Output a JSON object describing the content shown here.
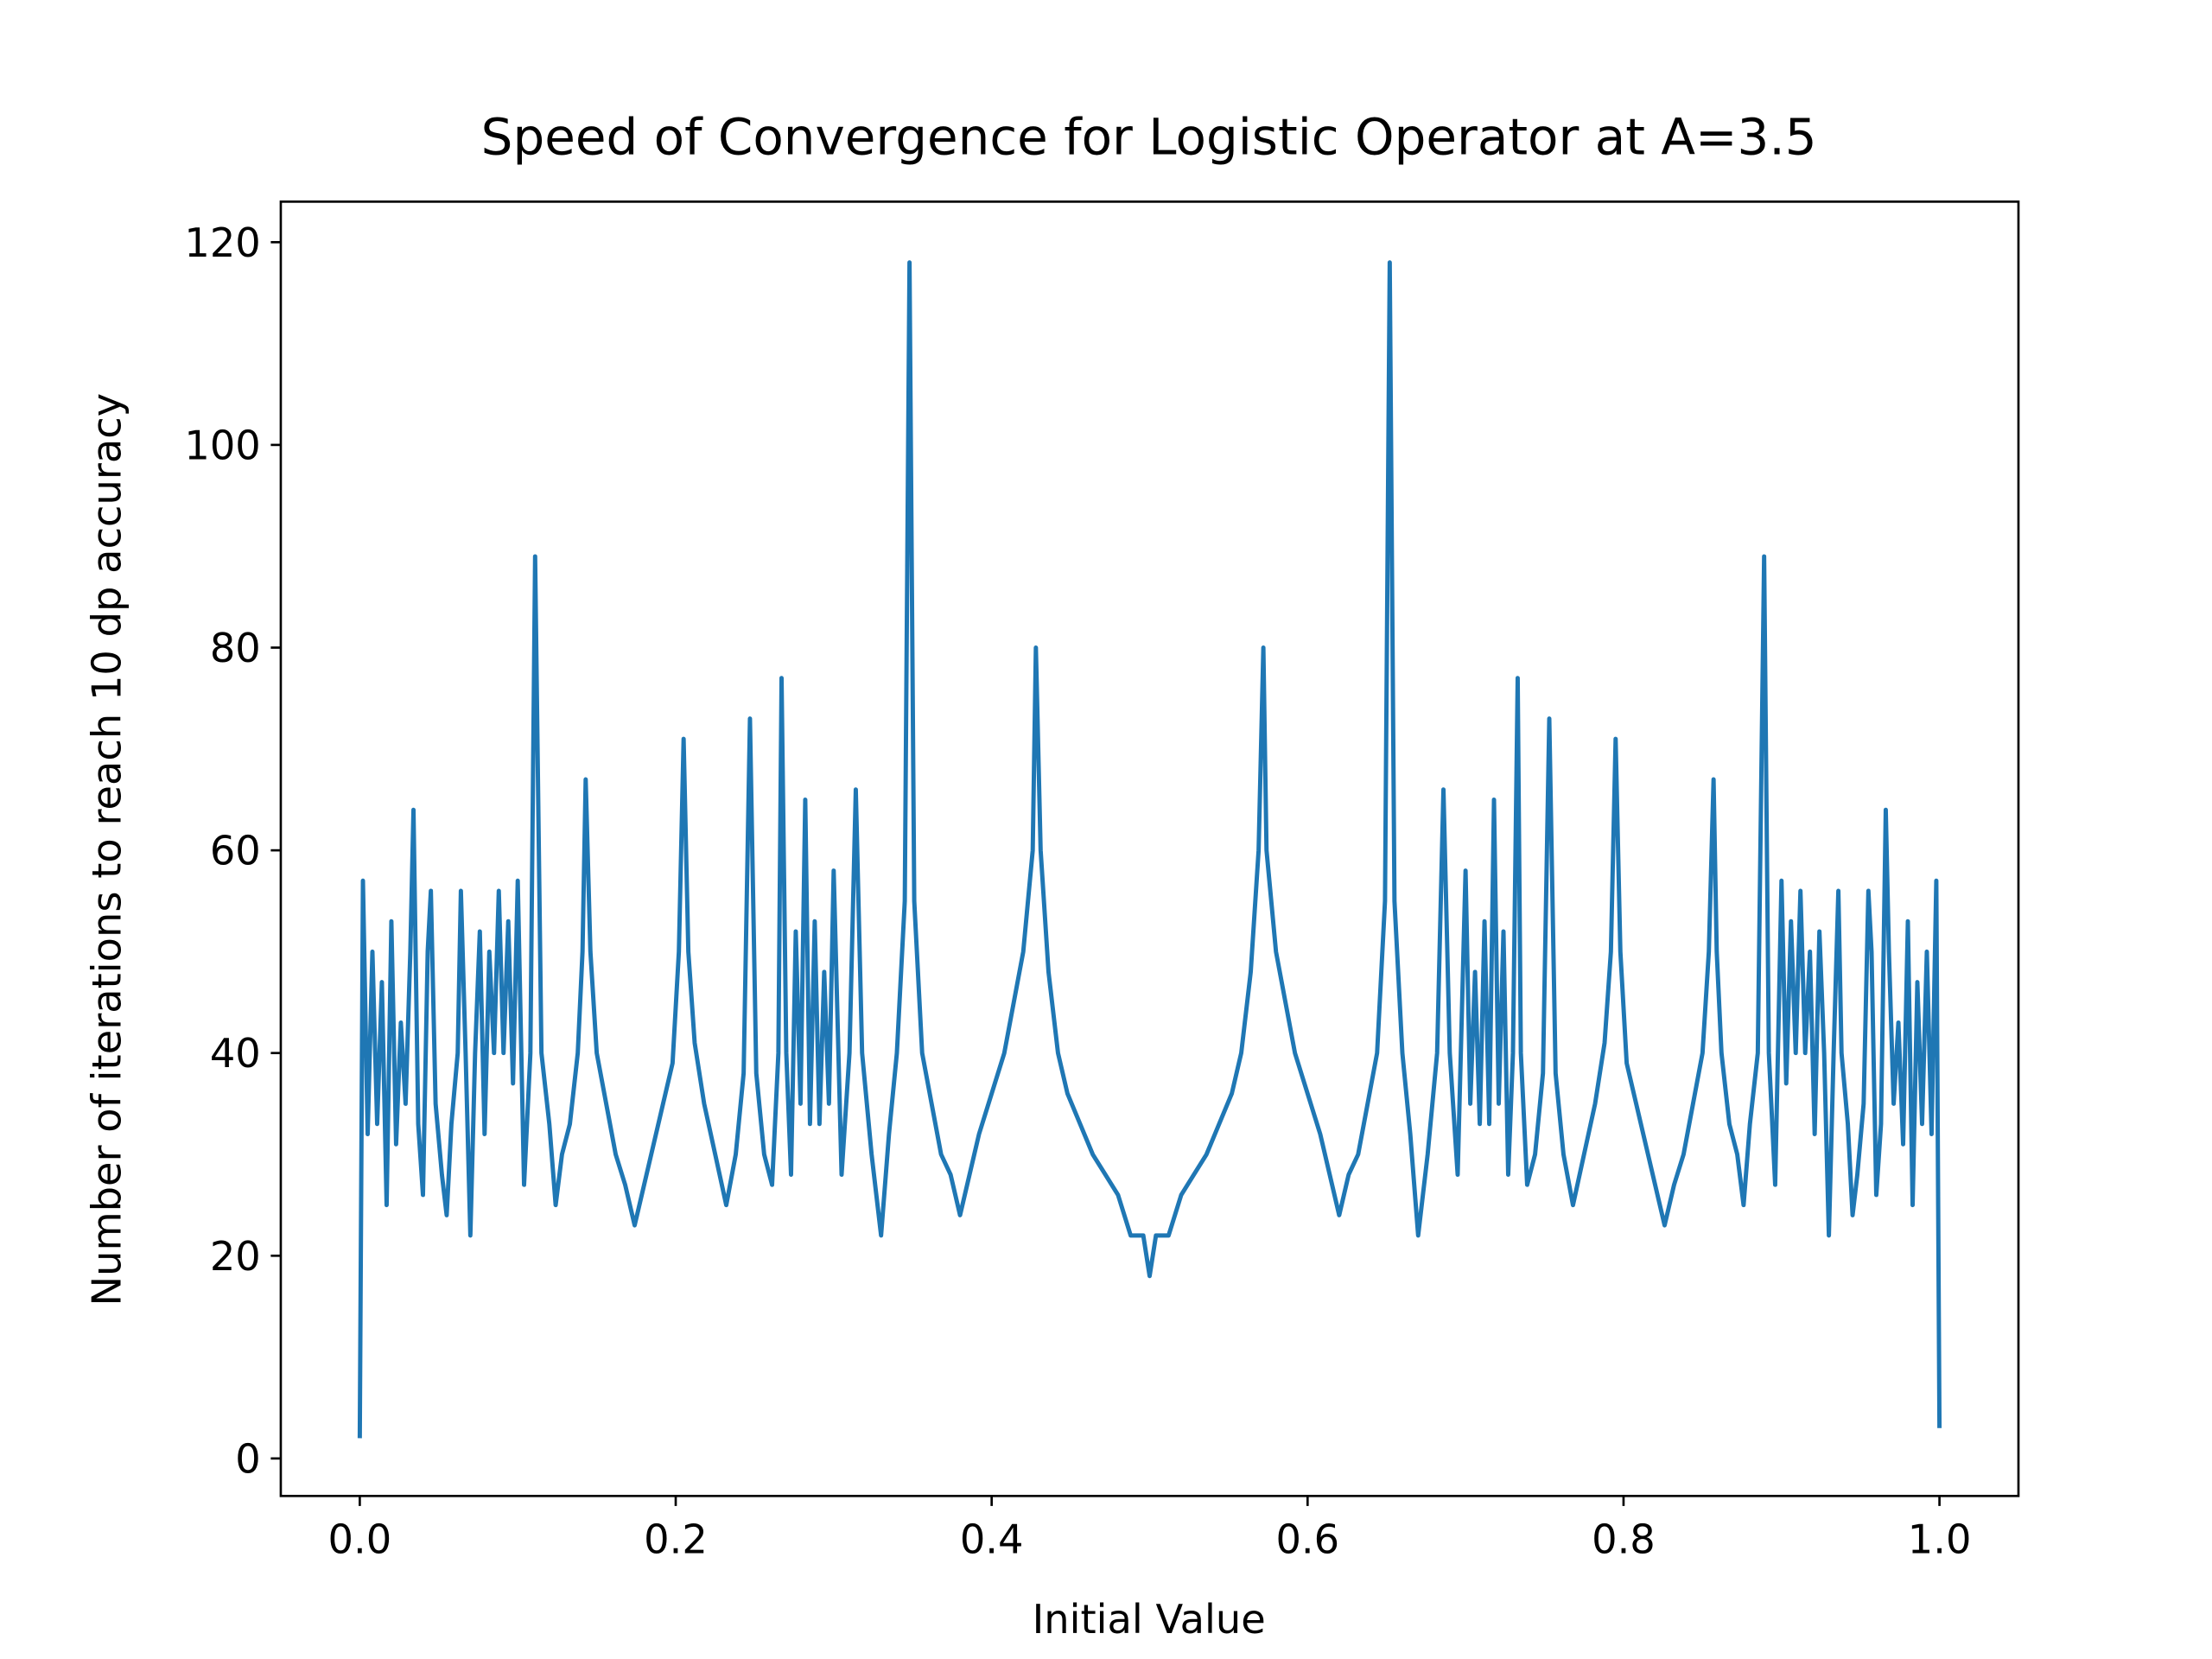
{
  "chart_data": {
    "type": "line",
    "title": "Speed of Convergence for Logistic Operator at A=3.5",
    "x_label": "Initial Value",
    "y_label": "Number of iterations to reach 10 dp accuracy",
    "xlim": [
      -0.05,
      1.05
    ],
    "ylim": [
      -3.7,
      124
    ],
    "xticks": [
      {
        "value": 0,
        "label": "0.0"
      },
      0.2,
      0.4,
      0.6,
      0.8,
      {
        "value": 1,
        "label": "1.0"
      }
    ],
    "yticks": [
      0,
      20,
      40,
      60,
      80,
      100,
      120
    ],
    "x": [
      0,
      0.002,
      0.005,
      0.008,
      0.011,
      0.014,
      0.017,
      0.02,
      0.023,
      0.026,
      0.029,
      0.032,
      0.034,
      0.037,
      0.04,
      0.043,
      0.045,
      0.048,
      0.052,
      0.055,
      0.058,
      0.062,
      0.064,
      0.067,
      0.07,
      0.073,
      0.076,
      0.079,
      0.082,
      0.085,
      0.088,
      0.091,
      0.094,
      0.097,
      0.1,
      0.104,
      0.108,
      0.111,
      0.115,
      0.12,
      0.124,
      0.128,
      0.133,
      0.138,
      0.141,
      0.143,
      0.146,
      0.15,
      0.156,
      0.162,
      0.168,
      0.174,
      0.18,
      0.186,
      0.192,
      0.198,
      0.202,
      0.205,
      0.208,
      0.212,
      0.218,
      0.225,
      0.232,
      0.238,
      0.243,
      0.247,
      0.251,
      0.256,
      0.261,
      0.265,
      0.267,
      0.27,
      0.273,
      0.276,
      0.279,
      0.282,
      0.285,
      0.288,
      0.291,
      0.294,
      0.297,
      0.3,
      0.305,
      0.31,
      0.314,
      0.318,
      0.324,
      0.33,
      0.335,
      0.34,
      0.345,
      0.348,
      0.351,
      0.356,
      0.362,
      0.368,
      0.374,
      0.38,
      0.386,
      0.392,
      0.4,
      0.408,
      0.414,
      0.42,
      0.426,
      0.428,
      0.431,
      0.436,
      0.442,
      0.448,
      0.456,
      0.464,
      0.472,
      0.48,
      0.488,
      0.496,
      0.5,
      0.504,
      0.512,
      0.52,
      0.528,
      0.536,
      0.544,
      0.552,
      0.558,
      0.564,
      0.569,
      0.572,
      0.574,
      0.58,
      0.586,
      0.592,
      0.6,
      0.608,
      0.614,
      0.62,
      0.626,
      0.632,
      0.638,
      0.644,
      0.649,
      0.652,
      0.655,
      0.66,
      0.665,
      0.67,
      0.676,
      0.682,
      0.686,
      0.69,
      0.695,
      0.7,
      0.703,
      0.706,
      0.709,
      0.712,
      0.715,
      0.718,
      0.721,
      0.724,
      0.727,
      0.73,
      0.733,
      0.735,
      0.739,
      0.744,
      0.749,
      0.753,
      0.757,
      0.762,
      0.768,
      0.775,
      0.782,
      0.788,
      0.792,
      0.795,
      0.798,
      0.802,
      0.808,
      0.814,
      0.82,
      0.826,
      0.832,
      0.838,
      0.844,
      0.85,
      0.854,
      0.857,
      0.859,
      0.862,
      0.867,
      0.872,
      0.876,
      0.88,
      0.885,
      0.889,
      0.892,
      0.896,
      0.9,
      0.903,
      0.906,
      0.909,
      0.912,
      0.915,
      0.918,
      0.921,
      0.924,
      0.927,
      0.93,
      0.933,
      0.936,
      0.938,
      0.942,
      0.945,
      0.948,
      0.952,
      0.955,
      0.957,
      0.96,
      0.963,
      0.966,
      0.968,
      0.971,
      0.974,
      0.977,
      0.98,
      0.983,
      0.986,
      0.989,
      0.992,
      0.995,
      0.998,
      1.0
    ],
    "series": [
      {
        "color": "#1f77b4",
        "values": [
          2,
          57,
          32,
          50,
          33,
          47,
          25,
          53,
          31,
          43,
          35,
          50,
          64,
          33,
          26,
          50,
          56,
          35,
          28,
          24,
          33,
          40,
          56,
          40,
          22,
          40,
          52,
          32,
          50,
          40,
          56,
          40,
          53,
          37,
          57,
          27,
          40,
          89,
          40,
          33,
          25,
          30,
          33,
          40,
          50,
          67,
          50,
          40,
          35,
          30,
          27,
          23,
          27,
          31,
          35,
          39,
          50,
          71,
          50,
          41,
          35,
          30,
          25,
          30,
          38,
          73,
          38,
          30,
          27,
          40,
          77,
          40,
          28,
          52,
          35,
          65,
          33,
          53,
          33,
          48,
          35,
          58,
          28,
          40,
          66,
          40,
          30,
          22,
          32,
          40,
          55,
          118,
          55,
          40,
          35,
          30,
          28,
          24,
          28,
          32,
          36,
          40,
          45,
          50,
          60,
          80,
          60,
          48,
          40,
          36,
          33,
          30,
          28,
          26,
          22,
          22,
          18,
          22,
          22,
          26,
          28,
          30,
          33,
          36,
          40,
          48,
          60,
          80,
          60,
          50,
          45,
          40,
          36,
          32,
          28,
          24,
          28,
          30,
          35,
          40,
          55,
          118,
          55,
          40,
          32,
          22,
          30,
          40,
          66,
          40,
          28,
          58,
          35,
          48,
          33,
          53,
          33,
          65,
          35,
          52,
          28,
          40,
          77,
          40,
          27,
          30,
          38,
          73,
          38,
          30,
          25,
          30,
          35,
          41,
          50,
          71,
          50,
          39,
          35,
          31,
          27,
          23,
          27,
          30,
          35,
          40,
          50,
          67,
          50,
          40,
          33,
          30,
          25,
          33,
          40,
          89,
          40,
          27,
          57,
          37,
          53,
          40,
          56,
          40,
          50,
          32,
          52,
          40,
          22,
          40,
          56,
          40,
          33,
          24,
          28,
          35,
          56,
          50,
          26,
          33,
          64,
          50,
          35,
          43,
          31,
          53,
          25,
          47,
          33,
          50,
          32,
          57,
          3
        ]
      }
    ]
  }
}
